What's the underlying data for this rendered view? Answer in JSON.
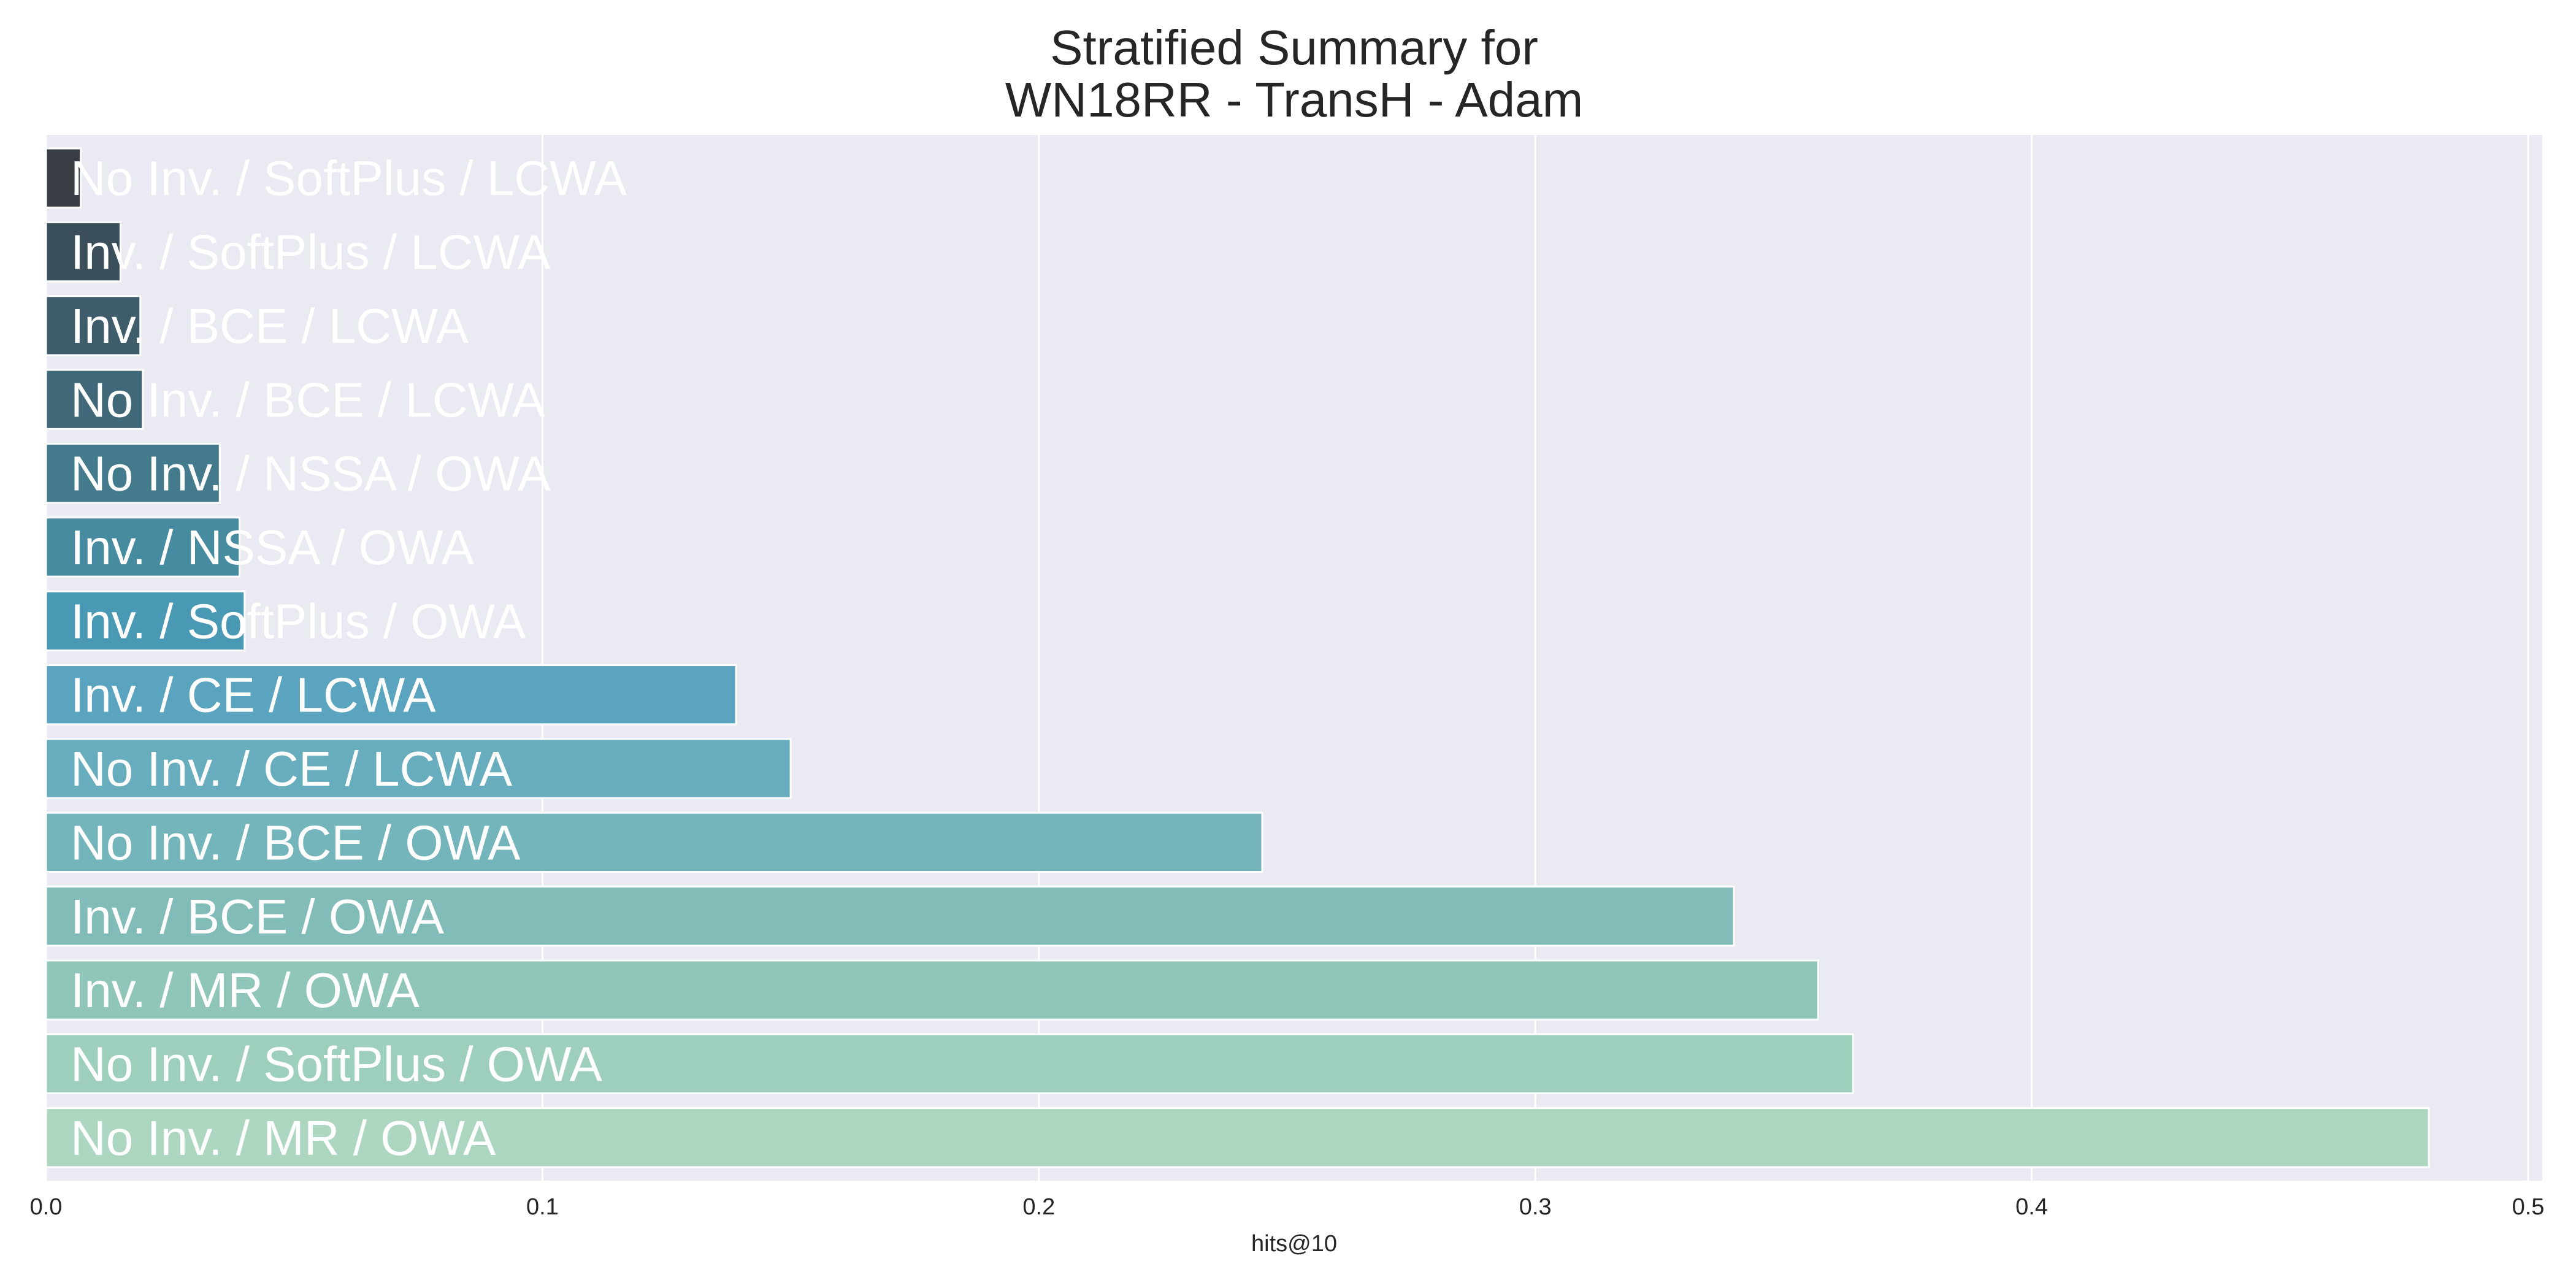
{
  "chart_data": {
    "type": "bar",
    "orientation": "horizontal",
    "title": [
      "Stratified Summary for",
      "WN18RR - TransH - Adam"
    ],
    "xlabel": "hits@10",
    "ylabel": "",
    "xlim": [
      0,
      0.5
    ],
    "xticks": [
      0.0,
      0.1,
      0.2,
      0.3,
      0.4,
      0.5
    ],
    "xtick_labels": [
      "0.0",
      "0.1",
      "0.2",
      "0.3",
      "0.4",
      "0.5"
    ],
    "grid": true,
    "legend": "none",
    "categories": [
      "No Inv. / SoftPlus / LCWA",
      "Inv. / SoftPlus / LCWA",
      "Inv. / BCE / LCWA",
      "No Inv. / BCE / LCWA",
      "No Inv. / NSSA / OWA",
      "Inv. / NSSA / OWA",
      "Inv. / SoftPlus / OWA",
      "Inv. / CE / LCWA",
      "No Inv. / CE / LCWA",
      "No Inv. / BCE / OWA",
      "Inv. / BCE / OWA",
      "Inv. / MR / OWA",
      "No Inv. / SoftPlus / OWA",
      "No Inv. / MR / OWA"
    ],
    "values": [
      0.007,
      0.015,
      0.019,
      0.0195,
      0.035,
      0.039,
      0.04,
      0.139,
      0.15,
      0.245,
      0.34,
      0.357,
      0.364,
      0.48
    ],
    "colors": [
      "#373d42",
      "#3a4f59",
      "#3e5c6a",
      "#406878",
      "#437a8c",
      "#468ba0",
      "#4a99b4",
      "#5aa4bf",
      "#67adbe",
      "#74b5bc",
      "#82bcb9",
      "#90c5b9",
      "#9ecfbc",
      "#acd6bf"
    ],
    "background": "#eaeaf2"
  }
}
